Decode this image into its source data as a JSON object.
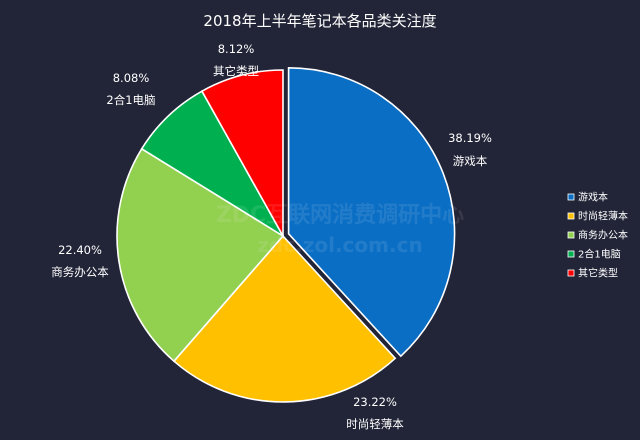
{
  "chart_data": {
    "type": "pie",
    "title": "2018年上半年笔记本各品类关注度",
    "legend_position": "right",
    "slices": [
      {
        "label": "游戏本",
        "value": 38.19,
        "value_label": "38.19%",
        "color": "#0A6EC4"
      },
      {
        "label": "时尚轻薄本",
        "value": 23.22,
        "value_label": "23.22%",
        "color": "#FFC000"
      },
      {
        "label": "商务办公本",
        "value": 22.4,
        "value_label": "22.40%",
        "color": "#92D050"
      },
      {
        "label": "2合1电脑",
        "value": 8.08,
        "value_label": "8.08%",
        "color": "#00B050"
      },
      {
        "label": "其它类型",
        "value": 8.12,
        "value_label": "8.12%",
        "color": "#FF0000"
      }
    ]
  },
  "watermark": {
    "line1": "ZDC互联网消费调研中心",
    "line2": "zdc.zol.com.cn"
  }
}
